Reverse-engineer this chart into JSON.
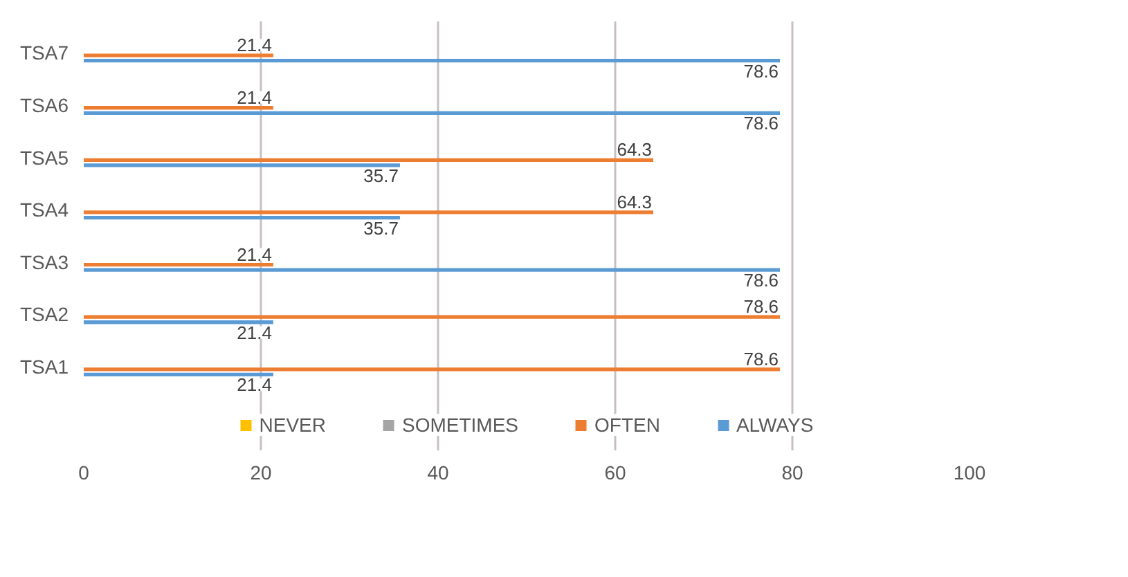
{
  "chart_data": {
    "type": "bar",
    "orientation": "horizontal",
    "categories": [
      "TSA7",
      "TSA6",
      "TSA5",
      "TSA4",
      "TSA3",
      "TSA2",
      "TSA1"
    ],
    "series": [
      {
        "name": "NEVER",
        "color": "#ffc000",
        "values": [
          null,
          null,
          null,
          null,
          null,
          null,
          null
        ]
      },
      {
        "name": "SOMETIMES",
        "color": "#a5a5a5",
        "values": [
          null,
          null,
          null,
          null,
          null,
          null,
          null
        ]
      },
      {
        "name": "OFTEN",
        "color": "#ed7d31",
        "values": [
          21.4,
          21.4,
          64.3,
          64.3,
          21.4,
          78.6,
          78.6
        ]
      },
      {
        "name": "ALWAYS",
        "color": "#5b9bd5",
        "values": [
          78.6,
          78.6,
          35.7,
          35.7,
          78.6,
          21.4,
          21.4
        ]
      }
    ],
    "xlim": [
      0,
      100
    ],
    "xticks": [
      0,
      20,
      40,
      60,
      80,
      100
    ],
    "grid": "x",
    "legend": "bottom",
    "data_labels": true
  }
}
